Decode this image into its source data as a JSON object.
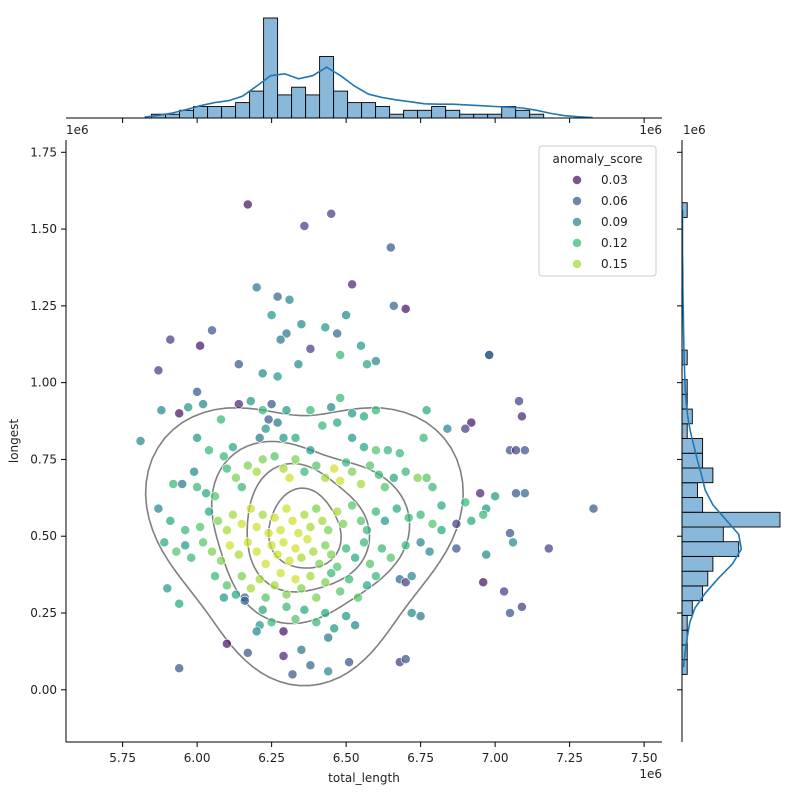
{
  "chart_data": {
    "type": "scatter",
    "subtype": "jointplot",
    "xlabel": "total_length",
    "ylabel": "longest",
    "x_offset_label": "1e6",
    "y_offset_label": "1e6",
    "xlim": [
      5.56,
      7.56
    ],
    "ylim": [
      -0.17,
      1.79
    ],
    "x_ticks": [
      5.75,
      6.0,
      6.25,
      6.5,
      6.75,
      7.0,
      7.25,
      7.5
    ],
    "x_tick_labels": [
      "5.75",
      "6.00",
      "6.25",
      "6.50",
      "6.75",
      "7.00",
      "7.25",
      "7.50"
    ],
    "y_ticks": [
      0.0,
      0.25,
      0.5,
      0.75,
      1.0,
      1.25,
      1.5,
      1.75
    ],
    "y_tick_labels": [
      "0.00",
      "0.25",
      "0.50",
      "0.75",
      "1.00",
      "1.25",
      "1.50",
      "1.75"
    ],
    "grid": false,
    "legend": {
      "title": "anomaly_score",
      "placement": "top-right",
      "entries": [
        {
          "label": "0.03",
          "value": 0.03
        },
        {
          "label": "0.06",
          "value": 0.06
        },
        {
          "label": "0.09",
          "value": 0.09
        },
        {
          "label": "0.12",
          "value": 0.12
        },
        {
          "label": "0.15",
          "value": 0.15
        }
      ]
    },
    "colormap": "viridis",
    "hue_range": [
      0.02,
      0.17
    ],
    "colors": {
      "histogram_fill": "#8ab8da",
      "kde_line": "#1f77b4",
      "contour_line": "#7f7f7f"
    },
    "points": [
      [
        6.17,
        1.58,
        0.03
      ],
      [
        6.45,
        1.55,
        0.05
      ],
      [
        6.65,
        1.44,
        0.06
      ],
      [
        6.36,
        1.51,
        0.05
      ],
      [
        6.52,
        1.32,
        0.04
      ],
      [
        6.2,
        1.31,
        0.08
      ],
      [
        6.27,
        1.28,
        0.07
      ],
      [
        6.66,
        1.25,
        0.07
      ],
      [
        6.7,
        1.24,
        0.03
      ],
      [
        6.31,
        1.27,
        0.09
      ],
      [
        6.25,
        1.22,
        0.1
      ],
      [
        6.35,
        1.19,
        0.09
      ],
      [
        6.43,
        1.18,
        0.1
      ],
      [
        6.47,
        1.16,
        0.07
      ],
      [
        6.5,
        1.22,
        0.09
      ],
      [
        6.3,
        1.16,
        0.08
      ],
      [
        6.28,
        1.14,
        0.08
      ],
      [
        6.34,
        1.06,
        0.09
      ],
      [
        6.38,
        1.11,
        0.05
      ],
      [
        6.55,
        1.12,
        0.1
      ],
      [
        6.6,
        1.07,
        0.09
      ],
      [
        6.57,
        1.06,
        0.11
      ],
      [
        6.48,
        1.09,
        0.12
      ],
      [
        6.05,
        1.17,
        0.06
      ],
      [
        6.01,
        1.12,
        0.03
      ],
      [
        5.91,
        1.14,
        0.05
      ],
      [
        5.87,
        1.04,
        0.05
      ],
      [
        6.14,
        1.06,
        0.06
      ],
      [
        6.22,
        1.03,
        0.09
      ],
      [
        6.27,
        1.02,
        0.1
      ],
      [
        6.98,
        1.09,
        0.08
      ],
      [
        6.98,
        1.09,
        0.06
      ],
      [
        6.0,
        0.97,
        0.06
      ],
      [
        5.88,
        0.91,
        0.09
      ],
      [
        5.94,
        0.9,
        0.03
      ],
      [
        5.97,
        0.92,
        0.1
      ],
      [
        6.02,
        0.93,
        0.09
      ],
      [
        6.08,
        0.88,
        0.12
      ],
      [
        6.14,
        0.93,
        0.04
      ],
      [
        6.18,
        0.94,
        0.1
      ],
      [
        6.22,
        0.91,
        0.12
      ],
      [
        6.25,
        0.93,
        0.06
      ],
      [
        6.3,
        0.91,
        0.1
      ],
      [
        6.38,
        0.91,
        0.12
      ],
      [
        6.45,
        0.92,
        0.09
      ],
      [
        6.48,
        0.95,
        0.12
      ],
      [
        6.52,
        0.9,
        0.1
      ],
      [
        6.56,
        0.89,
        0.11
      ],
      [
        6.6,
        0.91,
        0.12
      ],
      [
        6.77,
        0.91,
        0.11
      ],
      [
        6.92,
        0.87,
        0.03
      ],
      [
        6.9,
        0.85,
        0.05
      ],
      [
        7.08,
        0.94,
        0.05
      ],
      [
        7.09,
        0.89,
        0.04
      ],
      [
        5.81,
        0.81,
        0.09
      ],
      [
        6.0,
        0.82,
        0.1
      ],
      [
        6.04,
        0.78,
        0.12
      ],
      [
        6.09,
        0.76,
        0.12
      ],
      [
        6.12,
        0.79,
        0.11
      ],
      [
        6.21,
        0.82,
        0.08
      ],
      [
        6.23,
        0.85,
        0.1
      ],
      [
        6.24,
        0.88,
        0.06
      ],
      [
        6.27,
        0.87,
        0.08
      ],
      [
        6.29,
        0.82,
        0.1
      ],
      [
        6.33,
        0.82,
        0.11
      ],
      [
        6.38,
        0.78,
        0.1
      ],
      [
        6.42,
        0.86,
        0.12
      ],
      [
        6.47,
        0.87,
        0.11
      ],
      [
        6.52,
        0.82,
        0.1
      ],
      [
        6.56,
        0.79,
        0.11
      ],
      [
        6.6,
        0.78,
        0.13
      ],
      [
        6.64,
        0.78,
        0.12
      ],
      [
        6.68,
        0.77,
        0.12
      ],
      [
        6.76,
        0.82,
        0.12
      ],
      [
        6.84,
        0.85,
        0.09
      ],
      [
        7.05,
        0.78,
        0.06
      ],
      [
        7.07,
        0.78,
        0.05
      ],
      [
        7.1,
        0.78,
        0.06
      ],
      [
        5.92,
        0.67,
        0.12
      ],
      [
        5.95,
        0.67,
        0.08
      ],
      [
        5.99,
        0.71,
        0.09
      ],
      [
        6.0,
        0.66,
        0.12
      ],
      [
        6.03,
        0.64,
        0.11
      ],
      [
        6.06,
        0.63,
        0.13
      ],
      [
        6.1,
        0.72,
        0.12
      ],
      [
        6.13,
        0.69,
        0.14
      ],
      [
        6.15,
        0.66,
        0.12
      ],
      [
        6.17,
        0.73,
        0.14
      ],
      [
        6.2,
        0.71,
        0.15
      ],
      [
        6.22,
        0.75,
        0.14
      ],
      [
        6.26,
        0.76,
        0.13
      ],
      [
        6.29,
        0.72,
        0.15
      ],
      [
        6.31,
        0.69,
        0.16
      ],
      [
        6.33,
        0.75,
        0.14
      ],
      [
        6.36,
        0.71,
        0.12
      ],
      [
        6.4,
        0.73,
        0.13
      ],
      [
        6.43,
        0.69,
        0.15
      ],
      [
        6.46,
        0.72,
        0.16
      ],
      [
        6.48,
        0.68,
        0.16
      ],
      [
        6.5,
        0.74,
        0.12
      ],
      [
        6.52,
        0.71,
        0.14
      ],
      [
        6.55,
        0.67,
        0.15
      ],
      [
        6.58,
        0.73,
        0.13
      ],
      [
        6.61,
        0.7,
        0.12
      ],
      [
        6.63,
        0.66,
        0.13
      ],
      [
        6.66,
        0.69,
        0.11
      ],
      [
        6.7,
        0.71,
        0.12
      ],
      [
        6.74,
        0.69,
        0.14
      ],
      [
        6.77,
        0.69,
        0.13
      ],
      [
        6.79,
        0.66,
        0.12
      ],
      [
        6.82,
        0.6,
        0.11
      ],
      [
        6.9,
        0.61,
        0.12
      ],
      [
        6.95,
        0.64,
        0.04
      ],
      [
        6.97,
        0.59,
        0.1
      ],
      [
        7.0,
        0.63,
        0.1
      ],
      [
        7.07,
        0.64,
        0.06
      ],
      [
        7.1,
        0.64,
        0.07
      ],
      [
        7.33,
        0.59,
        0.06
      ],
      [
        5.87,
        0.59,
        0.09
      ],
      [
        5.91,
        0.55,
        0.11
      ],
      [
        5.96,
        0.52,
        0.12
      ],
      [
        6.01,
        0.53,
        0.13
      ],
      [
        6.04,
        0.58,
        0.11
      ],
      [
        6.07,
        0.55,
        0.14
      ],
      [
        6.1,
        0.52,
        0.15
      ],
      [
        6.12,
        0.57,
        0.15
      ],
      [
        6.15,
        0.54,
        0.16
      ],
      [
        6.18,
        0.59,
        0.16
      ],
      [
        6.2,
        0.53,
        0.16
      ],
      [
        6.22,
        0.57,
        0.15
      ],
      [
        6.24,
        0.51,
        0.16
      ],
      [
        6.26,
        0.56,
        0.16
      ],
      [
        6.28,
        0.52,
        0.16
      ],
      [
        6.3,
        0.59,
        0.16
      ],
      [
        6.32,
        0.55,
        0.16
      ],
      [
        6.34,
        0.51,
        0.16
      ],
      [
        6.36,
        0.57,
        0.15
      ],
      [
        6.38,
        0.53,
        0.15
      ],
      [
        6.4,
        0.59,
        0.14
      ],
      [
        6.42,
        0.55,
        0.15
      ],
      [
        6.44,
        0.52,
        0.14
      ],
      [
        6.47,
        0.58,
        0.15
      ],
      [
        6.49,
        0.54,
        0.14
      ],
      [
        6.52,
        0.6,
        0.13
      ],
      [
        6.55,
        0.55,
        0.13
      ],
      [
        6.57,
        0.52,
        0.12
      ],
      [
        6.6,
        0.58,
        0.12
      ],
      [
        6.63,
        0.55,
        0.1
      ],
      [
        6.67,
        0.59,
        0.11
      ],
      [
        6.71,
        0.56,
        0.12
      ],
      [
        6.75,
        0.57,
        0.12
      ],
      [
        6.79,
        0.54,
        0.13
      ],
      [
        6.82,
        0.52,
        0.11
      ],
      [
        6.87,
        0.54,
        0.05
      ],
      [
        6.92,
        0.55,
        0.11
      ],
      [
        6.96,
        0.57,
        0.12
      ],
      [
        7.05,
        0.51,
        0.06
      ],
      [
        7.06,
        0.48,
        0.09
      ],
      [
        7.18,
        0.46,
        0.05
      ],
      [
        5.89,
        0.48,
        0.11
      ],
      [
        5.93,
        0.45,
        0.13
      ],
      [
        5.96,
        0.47,
        0.1
      ],
      [
        5.98,
        0.43,
        0.12
      ],
      [
        6.02,
        0.48,
        0.13
      ],
      [
        6.05,
        0.45,
        0.14
      ],
      [
        6.08,
        0.42,
        0.14
      ],
      [
        6.11,
        0.47,
        0.16
      ],
      [
        6.14,
        0.44,
        0.15
      ],
      [
        6.17,
        0.48,
        0.16
      ],
      [
        6.2,
        0.45,
        0.16
      ],
      [
        6.23,
        0.41,
        0.16
      ],
      [
        6.25,
        0.47,
        0.16
      ],
      [
        6.27,
        0.44,
        0.16
      ],
      [
        6.29,
        0.48,
        0.16
      ],
      [
        6.31,
        0.42,
        0.16
      ],
      [
        6.33,
        0.46,
        0.16
      ],
      [
        6.35,
        0.43,
        0.15
      ],
      [
        6.37,
        0.49,
        0.16
      ],
      [
        6.39,
        0.45,
        0.15
      ],
      [
        6.41,
        0.41,
        0.14
      ],
      [
        6.43,
        0.47,
        0.14
      ],
      [
        6.45,
        0.44,
        0.14
      ],
      [
        6.47,
        0.4,
        0.13
      ],
      [
        6.5,
        0.46,
        0.12
      ],
      [
        6.53,
        0.43,
        0.11
      ],
      [
        6.56,
        0.48,
        0.12
      ],
      [
        6.58,
        0.41,
        0.13
      ],
      [
        6.62,
        0.46,
        0.12
      ],
      [
        6.65,
        0.43,
        0.13
      ],
      [
        6.7,
        0.47,
        0.12
      ],
      [
        6.75,
        0.48,
        0.09
      ],
      [
        6.78,
        0.45,
        0.09
      ],
      [
        6.87,
        0.46,
        0.06
      ],
      [
        6.97,
        0.44,
        0.09
      ],
      [
        5.9,
        0.33,
        0.1
      ],
      [
        5.94,
        0.28,
        0.11
      ],
      [
        6.06,
        0.37,
        0.12
      ],
      [
        6.1,
        0.34,
        0.13
      ],
      [
        6.13,
        0.31,
        0.11
      ],
      [
        6.15,
        0.37,
        0.14
      ],
      [
        6.18,
        0.33,
        0.15
      ],
      [
        6.21,
        0.36,
        0.15
      ],
      [
        6.23,
        0.3,
        0.13
      ],
      [
        6.26,
        0.34,
        0.15
      ],
      [
        6.28,
        0.38,
        0.16
      ],
      [
        6.3,
        0.31,
        0.14
      ],
      [
        6.33,
        0.36,
        0.16
      ],
      [
        6.35,
        0.33,
        0.14
      ],
      [
        6.38,
        0.37,
        0.15
      ],
      [
        6.4,
        0.3,
        0.14
      ],
      [
        6.43,
        0.35,
        0.14
      ],
      [
        6.45,
        0.38,
        0.12
      ],
      [
        6.48,
        0.32,
        0.13
      ],
      [
        6.51,
        0.36,
        0.12
      ],
      [
        6.54,
        0.3,
        0.13
      ],
      [
        6.57,
        0.34,
        0.11
      ],
      [
        6.6,
        0.37,
        0.12
      ],
      [
        6.68,
        0.36,
        0.07
      ],
      [
        6.7,
        0.35,
        0.05
      ],
      [
        6.72,
        0.37,
        0.09
      ],
      [
        6.96,
        0.35,
        0.03
      ],
      [
        7.03,
        0.32,
        0.05
      ],
      [
        6.09,
        0.3,
        0.1
      ],
      [
        6.16,
        0.3,
        0.06
      ],
      [
        6.16,
        0.29,
        0.07
      ],
      [
        6.22,
        0.26,
        0.11
      ],
      [
        6.25,
        0.22,
        0.12
      ],
      [
        6.3,
        0.27,
        0.12
      ],
      [
        6.33,
        0.23,
        0.13
      ],
      [
        6.36,
        0.26,
        0.11
      ],
      [
        6.4,
        0.22,
        0.12
      ],
      [
        6.43,
        0.25,
        0.11
      ],
      [
        6.46,
        0.2,
        0.1
      ],
      [
        6.5,
        0.24,
        0.1
      ],
      [
        6.53,
        0.21,
        0.09
      ],
      [
        6.72,
        0.25,
        0.09
      ],
      [
        6.75,
        0.24,
        0.08
      ],
      [
        7.05,
        0.25,
        0.06
      ],
      [
        7.09,
        0.27,
        0.05
      ],
      [
        6.21,
        0.21,
        0.1
      ],
      [
        6.2,
        0.19,
        0.09
      ],
      [
        6.29,
        0.19,
        0.03
      ],
      [
        6.44,
        0.17,
        0.08
      ],
      [
        6.35,
        0.13,
        0.08
      ],
      [
        6.1,
        0.15,
        0.03
      ],
      [
        6.17,
        0.12,
        0.06
      ],
      [
        6.29,
        0.11,
        0.04
      ],
      [
        6.38,
        0.08,
        0.07
      ],
      [
        6.44,
        0.06,
        0.09
      ],
      [
        6.51,
        0.09,
        0.06
      ],
      [
        6.32,
        0.05,
        0.06
      ],
      [
        5.94,
        0.07,
        0.06
      ],
      [
        6.68,
        0.09,
        0.05
      ],
      [
        6.7,
        0.1,
        0.06
      ]
    ],
    "top_histogram": {
      "bin_edges": [
        5.8,
        5.847,
        5.894,
        5.941,
        5.988,
        6.035,
        6.082,
        6.129,
        6.176,
        6.223,
        6.27,
        6.317,
        6.364,
        6.411,
        6.458,
        6.505,
        6.552,
        6.599,
        6.646,
        6.693,
        6.74,
        6.787,
        6.834,
        6.881,
        6.928,
        6.975,
        7.022,
        7.069,
        7.116,
        7.163,
        7.21,
        7.257,
        7.304,
        7.35
      ],
      "counts": [
        0,
        1,
        1,
        2,
        3,
        3,
        3,
        4,
        7,
        26,
        6,
        8,
        6,
        16,
        7,
        4,
        4,
        3,
        1,
        2,
        2,
        3,
        2,
        1,
        1,
        1,
        3,
        2,
        1,
        0,
        0,
        0,
        0
      ],
      "kde": [
        0.2,
        0.7,
        1.3,
        2.2,
        3.2,
        4.0,
        4.5,
        5.7,
        8.3,
        11.0,
        11.5,
        10.2,
        11.0,
        13.2,
        11.0,
        8.3,
        6.2,
        5.3,
        4.7,
        4.2,
        3.7,
        3.6,
        3.6,
        3.4,
        3.2,
        3.0,
        2.8,
        2.6,
        2.0,
        1.2,
        0.6,
        0.3,
        0.1
      ]
    },
    "right_histogram": {
      "bin_edges": [
        0.05,
        0.098,
        0.146,
        0.194,
        0.242,
        0.29,
        0.338,
        0.386,
        0.434,
        0.482,
        0.53,
        0.578,
        0.626,
        0.674,
        0.722,
        0.77,
        0.818,
        0.866,
        0.914,
        0.962,
        1.01,
        1.058,
        1.106,
        1.154,
        1.202,
        1.25,
        1.298,
        1.346,
        1.394,
        1.442,
        1.49,
        1.538,
        1.586
      ],
      "counts": [
        1,
        1,
        1,
        1,
        2,
        4,
        5,
        6,
        11,
        8,
        19,
        4,
        3,
        6,
        4,
        4,
        1,
        2,
        1,
        1,
        0,
        1,
        0,
        0,
        0,
        0,
        0,
        0,
        0,
        0,
        0,
        1
      ],
      "kde": [
        0.3,
        0.6,
        1.0,
        1.5,
        2.5,
        4.5,
        7.0,
        9.8,
        11.5,
        11.0,
        8.5,
        6.0,
        4.5,
        3.8,
        3.0,
        2.3,
        1.6,
        1.1,
        0.8,
        0.6,
        0.5,
        0.4,
        0.35,
        0.3,
        0.25,
        0.2,
        0.15,
        0.15,
        0.1,
        0.1,
        0.1,
        0.1
      ]
    },
    "kde_contours": {
      "center": [
        6.36,
        0.52
      ],
      "levels": [
        {
          "rx": 0.47,
          "ry": 0.48,
          "wobble": 0.14
        },
        {
          "rx": 0.31,
          "ry": 0.3,
          "wobble": 0.1
        },
        {
          "rx": 0.2,
          "ry": 0.21,
          "wobble": 0.07
        },
        {
          "rx": 0.12,
          "ry": 0.13,
          "wobble": 0.05
        }
      ]
    }
  }
}
